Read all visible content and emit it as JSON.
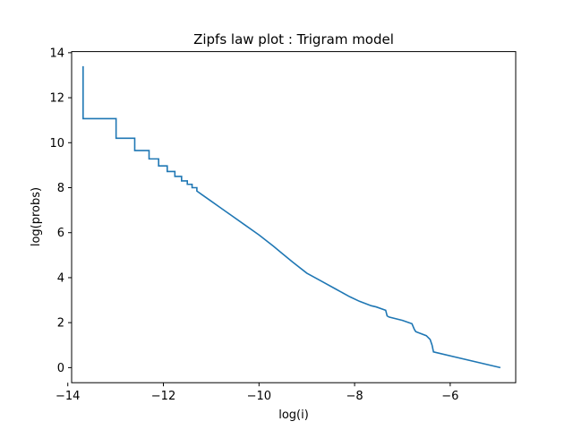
{
  "chart_data": {
    "type": "line",
    "title": "Zipfs law plot : Trigram model",
    "xlabel": "log(i)",
    "ylabel": "log(probs)",
    "xlim": [
      -13.92,
      -4.63
    ],
    "ylim": [
      -0.67,
      14.05
    ],
    "grid": false,
    "x_ticks": [
      -14,
      -12,
      -10,
      -8,
      -6
    ],
    "x_tick_labels": [
      "−14",
      "−12",
      "−10",
      "−8",
      "−6"
    ],
    "y_ticks": [
      0,
      2,
      4,
      6,
      8,
      10,
      12,
      14
    ],
    "y_tick_labels": [
      "0",
      "2",
      "4",
      "6",
      "8",
      "10",
      "12",
      "14"
    ],
    "series": [
      {
        "color": "#1f77b4",
        "x": [
          -13.68,
          -13.68,
          -13.68,
          -12.99,
          -12.99,
          -12.6,
          -12.6,
          -12.3,
          -12.3,
          -12.1,
          -12.1,
          -11.92,
          -11.92,
          -11.76,
          -11.76,
          -11.62,
          -11.62,
          -11.5,
          -11.5,
          -11.4,
          -11.4,
          -11.3,
          -11.3,
          -11.2,
          -11.1,
          -11.0,
          -10.8,
          -10.6,
          -10.3,
          -10.0,
          -9.7,
          -9.5,
          -9.3,
          -9.0,
          -8.7,
          -8.4,
          -8.1,
          -7.9,
          -7.65,
          -7.55,
          -7.35,
          -7.32,
          -7.28,
          -7.0,
          -6.8,
          -6.75,
          -6.72,
          -6.5,
          -6.42,
          -6.38,
          -6.35,
          -4.95
        ],
        "y": [
          13.4,
          13.4,
          11.07,
          11.07,
          10.2,
          10.2,
          9.65,
          9.65,
          9.28,
          9.28,
          8.97,
          8.97,
          8.72,
          8.72,
          8.5,
          8.5,
          8.3,
          8.3,
          8.15,
          8.15,
          8.0,
          8.0,
          7.85,
          7.7,
          7.55,
          7.4,
          7.1,
          6.8,
          6.35,
          5.9,
          5.4,
          5.05,
          4.7,
          4.2,
          3.85,
          3.5,
          3.15,
          2.95,
          2.75,
          2.7,
          2.55,
          2.3,
          2.25,
          2.1,
          1.95,
          1.7,
          1.6,
          1.42,
          1.25,
          1.0,
          0.7,
          0.0
        ]
      }
    ]
  }
}
